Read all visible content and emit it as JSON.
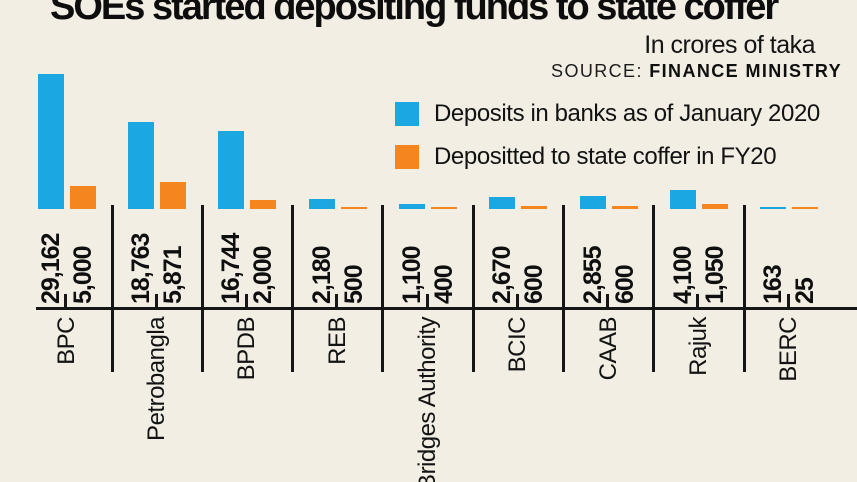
{
  "title": "SOEs started depositing funds to state coffer",
  "unit_note": "In crores of taka",
  "source": {
    "label": "SOURCE:",
    "value": "FINANCE MINISTRY"
  },
  "colors": {
    "blue": "#1BA8E2",
    "orange": "#F5861F",
    "background": "#F2EEE4",
    "ink": "#161616"
  },
  "chart_data": {
    "type": "bar",
    "title": "SOEs started depositing funds to state coffer",
    "unit": "In crores of taka",
    "source": "FINANCE MINISTRY",
    "categories": [
      "BPC",
      "Petrobangla",
      "BPDB",
      "REB",
      "Bridges Authority",
      "BCIC",
      "CAAB",
      "Rajuk",
      "BERC"
    ],
    "series": [
      {
        "name": "Deposits in banks as of January 2020",
        "color": "#1BA8E2",
        "values": [
          29162,
          18763,
          16744,
          2180,
          1100,
          2670,
          2855,
          4100,
          163
        ]
      },
      {
        "name": "Depositted to state coffer in FY20",
        "color": "#F5861F",
        "values": [
          5000,
          5871,
          2000,
          500,
          400,
          600,
          600,
          1050,
          25
        ]
      }
    ],
    "value_labels": [
      [
        "29,162",
        "5,000"
      ],
      [
        "18,763",
        "5,871"
      ],
      [
        "16,744",
        "2,000"
      ],
      [
        "2,180",
        "500"
      ],
      [
        "1,100",
        "400"
      ],
      [
        "2,670",
        "600"
      ],
      [
        "2,855",
        "600"
      ],
      [
        "4,100",
        "1,050"
      ],
      [
        "163",
        "25"
      ]
    ],
    "ylim": [
      0,
      29162
    ],
    "grid": false,
    "legend_position": "top-right",
    "category_label_rotation": -90,
    "value_label_rotation": -90
  }
}
